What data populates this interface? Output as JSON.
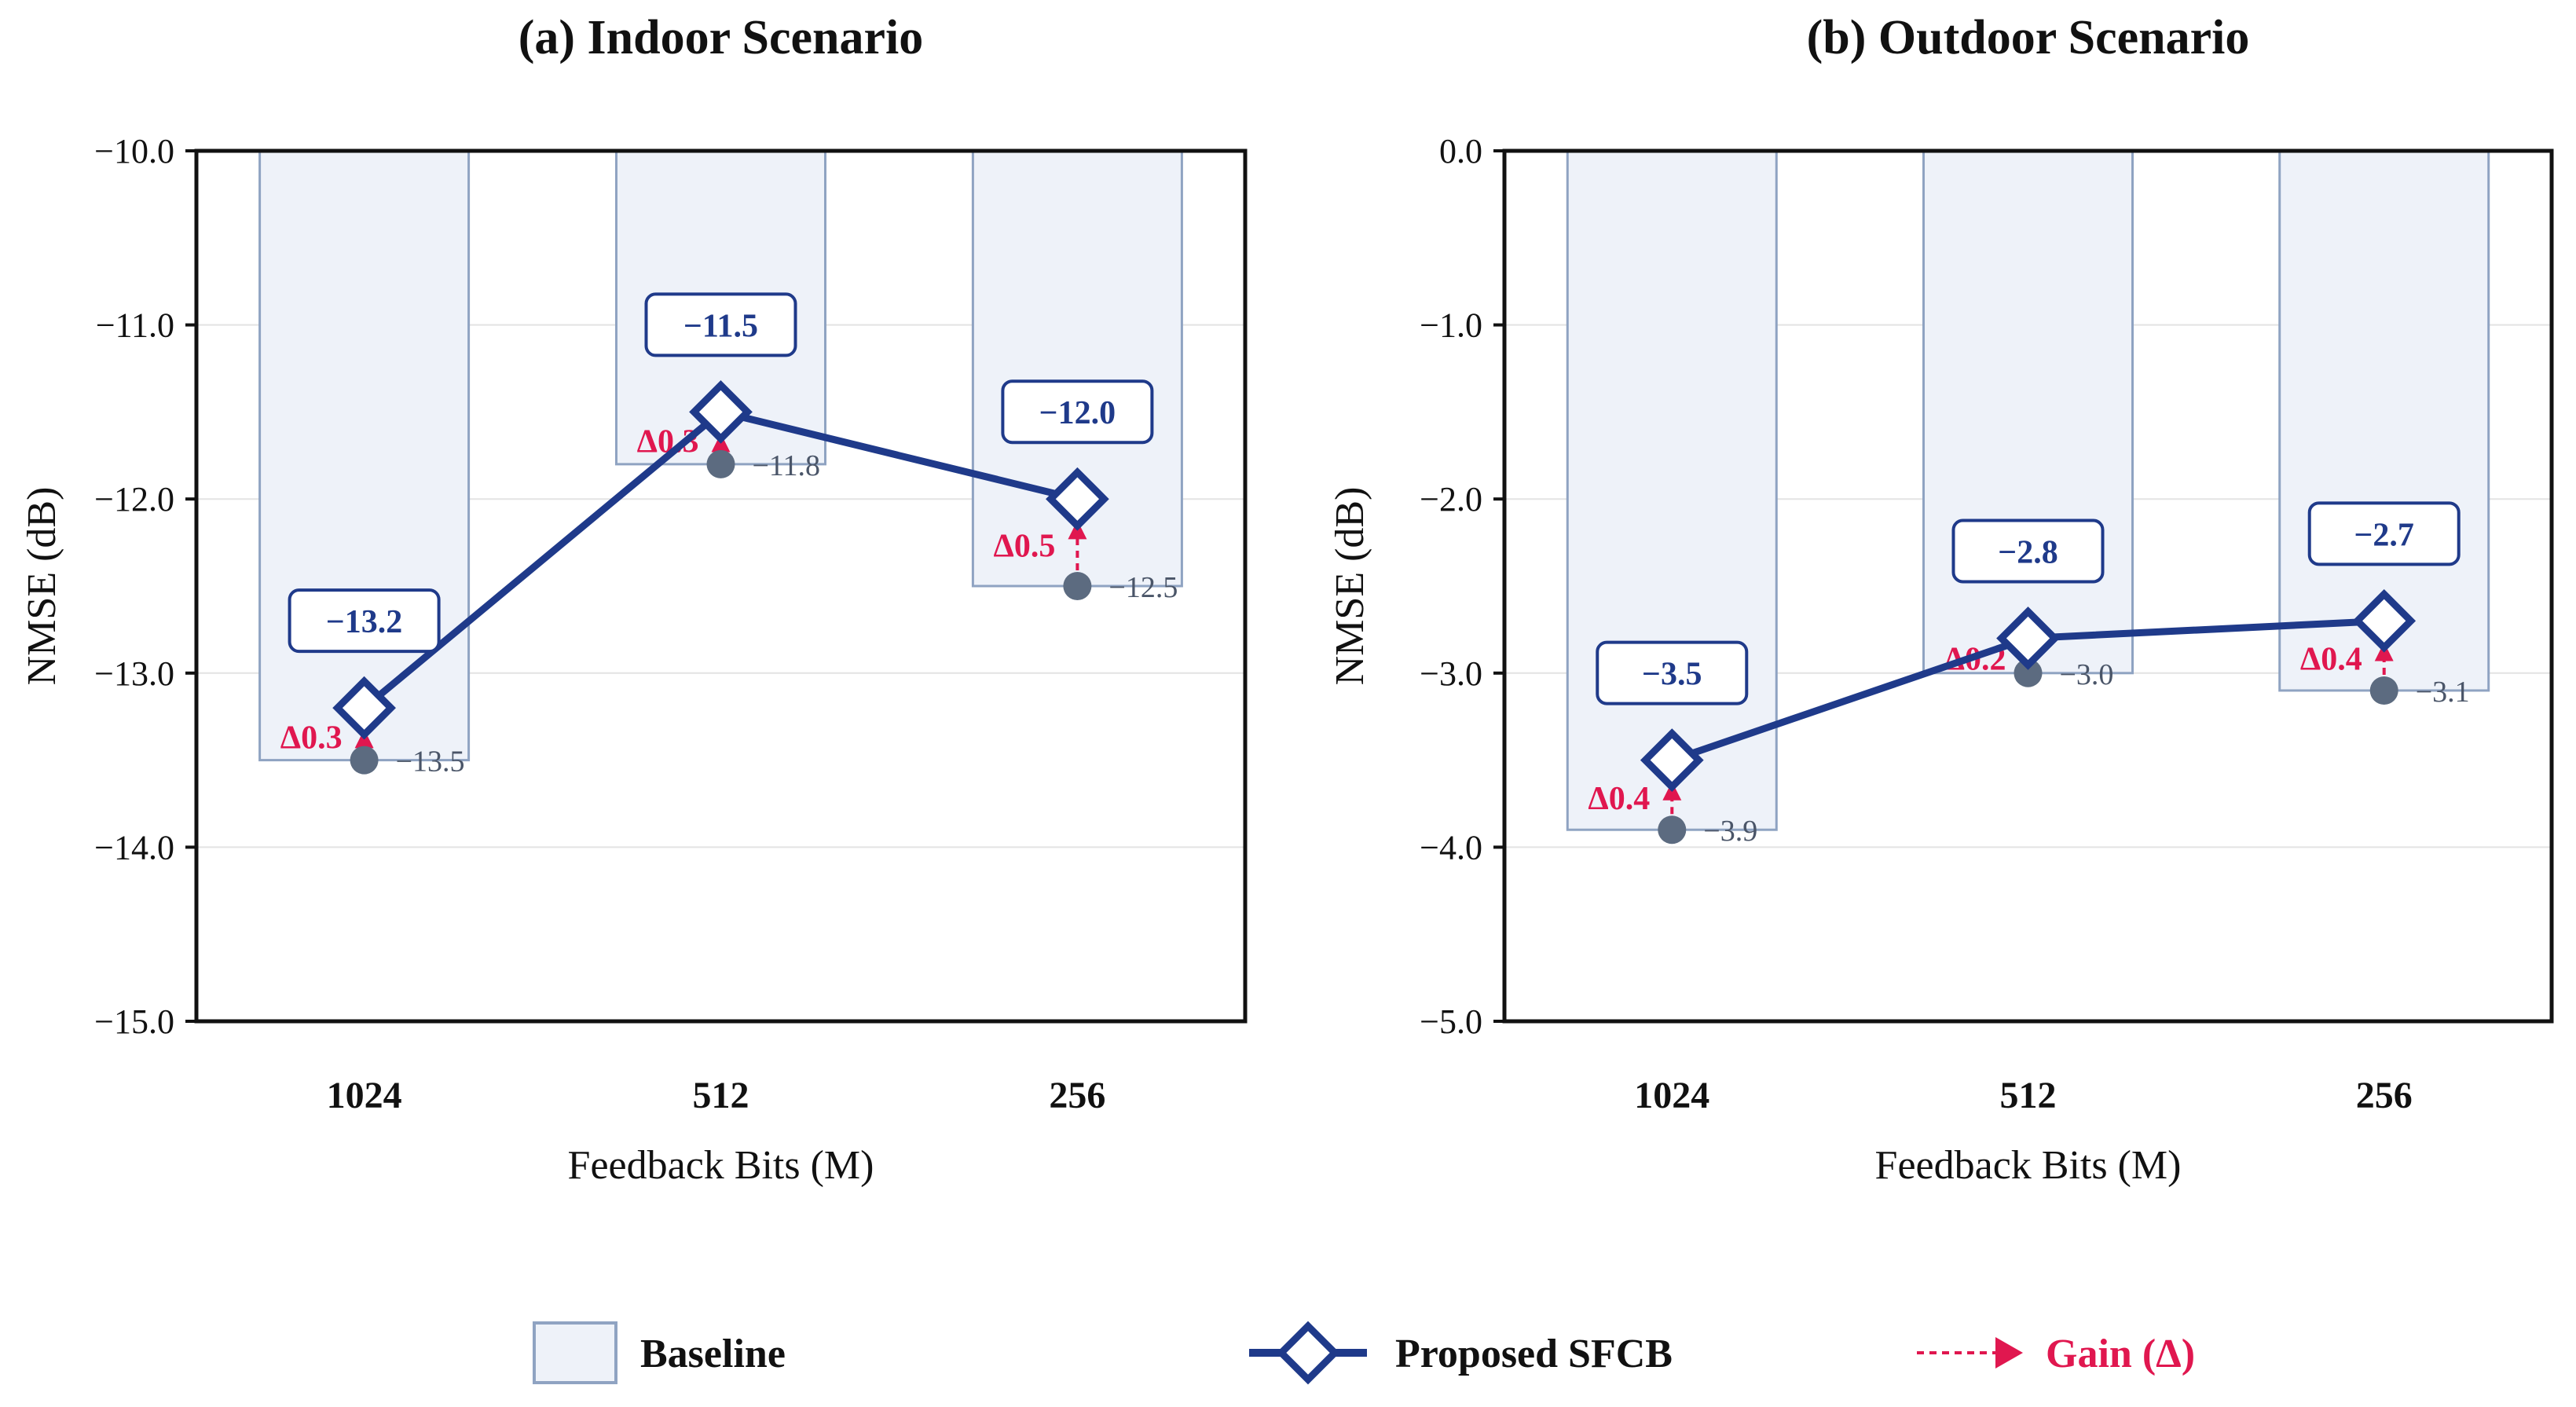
{
  "colors": {
    "proposed": "#1f3a8a",
    "baseline_fill": "#eef2f9",
    "baseline_stroke": "#8fa3c2",
    "baseline_marker": "#5c6b80",
    "gain": "#e0174f",
    "grid": "#e3e3e3"
  },
  "chart_data": [
    {
      "type": "bar",
      "title": "(a) Indoor Scenario",
      "xlabel": "Feedback Bits (M)",
      "ylabel": "NMSE (dB)",
      "ylim": [
        -15.0,
        -10.0
      ],
      "yticks": [
        "−10.0",
        "−11.0",
        "−12.0",
        "−13.0",
        "−14.0",
        "−15.0"
      ],
      "ytick_values": [
        -10,
        -11,
        -12,
        -13,
        -14,
        -15
      ],
      "categories": [
        "1024",
        "512",
        "256"
      ],
      "series": [
        {
          "name": "Baseline",
          "values": [
            -13.5,
            -11.8,
            -12.5
          ],
          "labels": [
            "−13.5",
            "−11.8",
            "−12.5"
          ]
        },
        {
          "name": "Proposed SFCB",
          "values": [
            -13.2,
            -11.5,
            -12.0
          ],
          "labels": [
            "−13.2",
            "−11.5",
            "−12.0"
          ]
        }
      ],
      "gains": [
        "Δ0.3",
        "Δ0.3",
        "Δ0.5"
      ]
    },
    {
      "type": "bar",
      "title": "(b) Outdoor Scenario",
      "xlabel": "Feedback Bits (M)",
      "ylabel": "NMSE (dB)",
      "ylim": [
        -5.0,
        0.0
      ],
      "yticks": [
        "0.0",
        "−1.0",
        "−2.0",
        "−3.0",
        "−4.0",
        "−5.0"
      ],
      "ytick_values": [
        0,
        -1,
        -2,
        -3,
        -4,
        -5
      ],
      "categories": [
        "1024",
        "512",
        "256"
      ],
      "series": [
        {
          "name": "Baseline",
          "values": [
            -3.9,
            -3.0,
            -3.1
          ],
          "labels": [
            "−3.9",
            "−3.0",
            "−3.1"
          ]
        },
        {
          "name": "Proposed SFCB",
          "values": [
            -3.5,
            -2.8,
            -2.7
          ],
          "labels": [
            "−3.5",
            "−2.8",
            "−2.7"
          ]
        }
      ],
      "gains": [
        "Δ0.4",
        "Δ0.2",
        "Δ0.4"
      ]
    }
  ],
  "legend": {
    "baseline": "Baseline",
    "proposed": "Proposed SFCB",
    "gain": "Gain (Δ)"
  }
}
